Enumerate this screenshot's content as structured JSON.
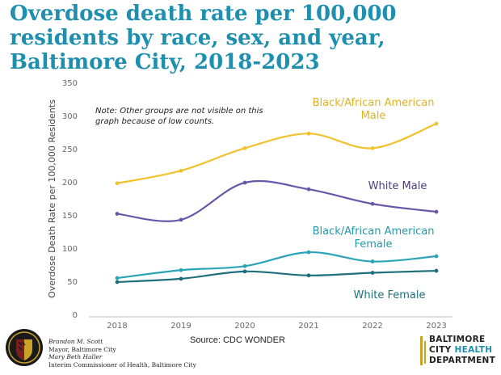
{
  "title": "Overdose death rate per 100,000 residents by race, sex, and year, Baltimore City, 2018-2023",
  "source": "Source: CDC WONDER",
  "officials": {
    "line1": "Brandon M. Scott",
    "line2": "Mayor, Baltimore City",
    "line3": "Mary Beth Haller",
    "line4": "Interim Commissioner of Health, Baltimore City"
  },
  "department": {
    "line1": "BALTIMORE",
    "line2a": "CITY ",
    "line2b": "HEALTH",
    "line3": "DEPARTMENT"
  },
  "seal_text": "CITY OF BALTIMORE",
  "chart_data": {
    "type": "line",
    "title": "Overdose death rate per 100,000 residents by race, sex, and year, Baltimore City, 2018-2023",
    "xlabel": "",
    "ylabel": "Overdose Death Rate per 100,000 Residents",
    "x": [
      "2018",
      "2019",
      "2020",
      "2021",
      "2022",
      "2023"
    ],
    "ylim": [
      0,
      350
    ],
    "yticks": [
      0,
      50,
      100,
      150,
      200,
      250,
      300,
      350
    ],
    "grid": false,
    "note": [
      "Note: Other groups are not visible on this",
      "graph because of low counts."
    ],
    "series": [
      {
        "name": "Black/African American Male",
        "label_lines": [
          "Black/African American",
          "Male"
        ],
        "color": "#f2c12e",
        "values": [
          199,
          218,
          252,
          274,
          252,
          289
        ]
      },
      {
        "name": "White Male",
        "label_lines": [
          "White Male"
        ],
        "color": "#6a56a8",
        "values": [
          153,
          144,
          200,
          190,
          168,
          156
        ]
      },
      {
        "name": "Black/African American Female",
        "label_lines": [
          "Black/African American",
          "Female"
        ],
        "color": "#2ba4b8",
        "values": [
          56,
          68,
          74,
          95,
          81,
          89
        ]
      },
      {
        "name": "White Female",
        "label_lines": [
          "White Female"
        ],
        "color": "#1d6f7c",
        "values": [
          50,
          55,
          66,
          60,
          64,
          67
        ]
      }
    ]
  }
}
